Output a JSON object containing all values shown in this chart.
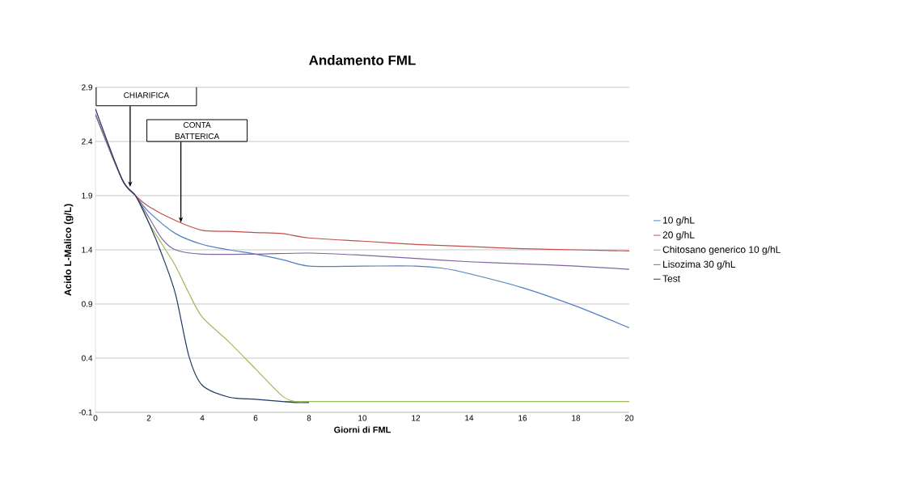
{
  "chart_data": {
    "type": "line",
    "title": "Andamento FML",
    "xlabel": "Giorni di FML",
    "ylabel": "Acido L-Malico (g/L)",
    "xlim": [
      0,
      20
    ],
    "xticks": [
      0,
      2,
      4,
      6,
      8,
      10,
      12,
      14,
      16,
      18,
      20
    ],
    "ylim": [
      -0.1,
      2.9
    ],
    "yticks": [
      -0.1,
      0.4,
      0.9,
      1.4,
      1.9,
      2.4,
      2.9
    ],
    "grid": "y",
    "legend": "right",
    "marker": "none",
    "line_style": "solid",
    "annotations": [
      {
        "text": "CHIARIFICA",
        "x": 1.3,
        "y": 1.98
      },
      {
        "text": "CONTA BATTERICA",
        "x": 3.2,
        "y": 1.65
      }
    ],
    "series": [
      {
        "name": "10 g/hL",
        "color": "#4f81bd",
        "x": [
          0,
          1,
          1.5,
          2,
          3,
          4,
          5,
          6,
          7,
          8,
          10,
          12,
          13,
          14,
          16,
          18,
          20
        ],
        "values": [
          2.65,
          2.05,
          1.9,
          1.75,
          1.55,
          1.45,
          1.4,
          1.36,
          1.31,
          1.25,
          1.25,
          1.25,
          1.23,
          1.18,
          1.05,
          0.88,
          0.68
        ]
      },
      {
        "name": "20 g/hL",
        "color": "#c0504d",
        "x": [
          0,
          1,
          1.5,
          2,
          3,
          4,
          5,
          6,
          7,
          8,
          10,
          12,
          14,
          16,
          18,
          20
        ],
        "values": [
          2.65,
          2.05,
          1.9,
          1.8,
          1.67,
          1.58,
          1.57,
          1.56,
          1.55,
          1.51,
          1.48,
          1.45,
          1.43,
          1.41,
          1.4,
          1.39
        ]
      },
      {
        "name": "Chitosano generico 10 g/hL",
        "color": "#9bbb59",
        "x": [
          0,
          1,
          1.5,
          2,
          2.5,
          3,
          3.5,
          4,
          5,
          6,
          7,
          7.5,
          8,
          20
        ],
        "values": [
          2.65,
          2.05,
          1.9,
          1.65,
          1.45,
          1.25,
          1.0,
          0.78,
          0.55,
          0.3,
          0.05,
          0.0,
          0.0,
          0.0
        ]
      },
      {
        "name": "Lisozima 30 g/hL",
        "color": "#8064a2",
        "x": [
          0,
          1,
          1.5,
          2,
          2.5,
          3,
          4,
          6,
          8,
          10,
          12,
          14,
          16,
          18,
          20
        ],
        "values": [
          2.65,
          2.05,
          1.9,
          1.7,
          1.5,
          1.4,
          1.36,
          1.36,
          1.37,
          1.35,
          1.32,
          1.29,
          1.27,
          1.25,
          1.22
        ]
      },
      {
        "name": "Test",
        "color": "#1f3864",
        "x": [
          0,
          1,
          1.5,
          2,
          2.5,
          3,
          3.5,
          4,
          5,
          6,
          7,
          7.5,
          8
        ],
        "values": [
          2.7,
          2.05,
          1.9,
          1.65,
          1.35,
          0.99,
          0.42,
          0.15,
          0.04,
          0.02,
          0.0,
          -0.01,
          -0.01
        ]
      }
    ]
  }
}
